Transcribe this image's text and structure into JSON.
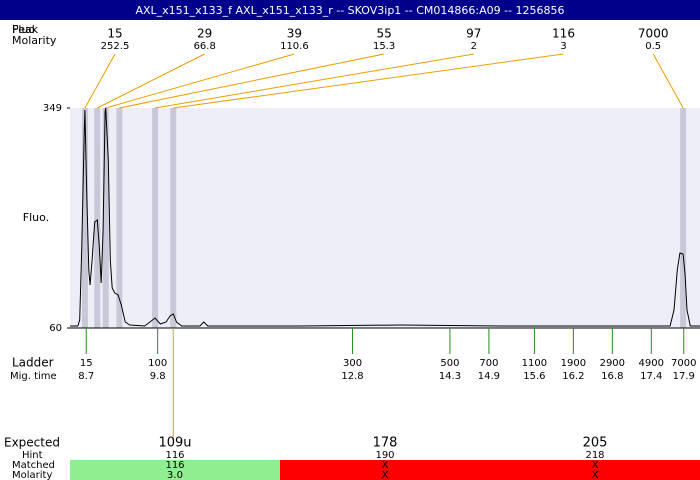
{
  "header": {
    "title": "AXL_x151_x133_f  AXL_x151_x133_r -- SKOV3ip1 -- CM014866:A09 -- 1256856"
  },
  "row_labels": {
    "peak": "Peak",
    "fluo": "Fluo",
    "molarity": "Molarity",
    "ladder": "Ladder",
    "mig_time": "Mig. time",
    "expected": "Expected",
    "hint": "Hint",
    "matched": "Matched",
    "molarity2": "Molarity"
  },
  "chart_data": {
    "type": "line",
    "y_label": "Fluo.",
    "xlim": [
      8.45,
      18.15
    ],
    "ylim": [
      60,
      349
    ],
    "yticks": [
      60,
      349
    ],
    "peak_color": "#e8a000",
    "band_color": "#c8c8d8",
    "plot_bg": "#eeeef8",
    "ladder_color": "#228b22",
    "line_color": "#000000",
    "peaks": {
      "sizes": [
        15,
        29,
        39,
        55,
        97,
        116,
        7000
      ],
      "molarity": [
        252.5,
        66.8,
        110.6,
        15.3,
        2,
        3,
        0.5
      ],
      "mig_times": [
        8.68,
        8.87,
        9.0,
        9.21,
        9.76,
        10.04,
        17.89
      ]
    },
    "ladder": {
      "sizes": [
        15,
        100,
        300,
        500,
        700,
        1100,
        1900,
        2900,
        4900,
        7000
      ],
      "mig_times": [
        8.7,
        9.8,
        12.8,
        14.3,
        14.9,
        15.6,
        16.2,
        16.8,
        17.4,
        17.9
      ]
    },
    "x": [
      8.45,
      8.57,
      8.6,
      8.63,
      8.67,
      8.68,
      8.71,
      8.74,
      8.76,
      8.79,
      8.83,
      8.87,
      8.9,
      8.93,
      8.96,
      8.99,
      9.0,
      9.04,
      9.07,
      9.1,
      9.14,
      9.19,
      9.24,
      9.3,
      9.37,
      9.6,
      9.68,
      9.76,
      9.84,
      9.93,
      9.99,
      10.04,
      10.09,
      10.17,
      10.45,
      10.51,
      10.57,
      11.99,
      13.53,
      15.07,
      16.61,
      17.69,
      17.75,
      17.8,
      17.84,
      17.89,
      17.92,
      17.95,
      18.0,
      18.15
    ],
    "values": [
      62.6,
      62.6,
      70.5,
      162.5,
      320.1,
      346.4,
      228.1,
      136.2,
      116.5,
      149.3,
      199.2,
      201.9,
      169.0,
      119.1,
      188.7,
      343.7,
      349,
      280.7,
      149.3,
      112.5,
      106,
      103.3,
      90.2,
      67.9,
      63.9,
      62.6,
      67.9,
      73.1,
      65.3,
      67.9,
      75.8,
      78.4,
      67.9,
      62.6,
      62.6,
      67.9,
      62.6,
      62.6,
      63.9,
      62.6,
      62.6,
      62.6,
      83.6,
      136.2,
      158.5,
      157.2,
      129.6,
      83.6,
      62.6,
      62.6
    ]
  },
  "expected": {
    "columns": [
      {
        "expected": "109u",
        "hint": "116",
        "matched": "116",
        "molarity": "3.0",
        "color": "#90ee90"
      },
      {
        "expected": "178",
        "hint": "190",
        "matched": "X",
        "molarity": "X",
        "color": "#ff0000"
      },
      {
        "expected": "205",
        "hint": "218",
        "matched": "X",
        "molarity": "X",
        "color": "#ff0000"
      }
    ]
  }
}
